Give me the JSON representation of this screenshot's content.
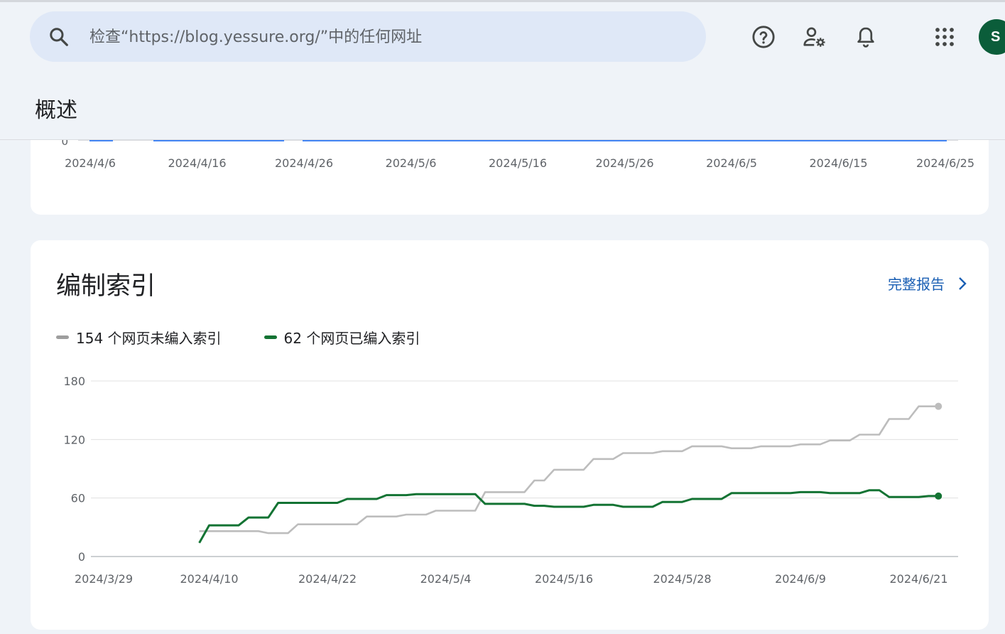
{
  "search": {
    "placeholder": "检查“https://blog.yessure.org/”中的任何网址"
  },
  "header": {
    "avatar_letter": "S"
  },
  "page": {
    "title": "概述"
  },
  "top_chart": {
    "zero_label": "0",
    "x_ticks": [
      "2024/4/6",
      "2024/4/16",
      "2024/4/26",
      "2024/5/6",
      "2024/5/16",
      "2024/5/26",
      "2024/6/5",
      "2024/6/15",
      "2024/6/25"
    ]
  },
  "indexing": {
    "title": "编制索引",
    "full_report_label": "完整报告",
    "legend": [
      {
        "label": "154 个网页未编入索引",
        "color": "#9e9e9e"
      },
      {
        "label": "62 个网页已编入索引",
        "color": "#137333"
      }
    ]
  },
  "chart_data": {
    "type": "line",
    "y_ticks": [
      "180",
      "120",
      "60",
      "0"
    ],
    "ylim": [
      0,
      180
    ],
    "x_ticks": [
      "2024/3/29",
      "2024/4/10",
      "2024/4/22",
      "2024/5/4",
      "2024/5/16",
      "2024/5/28",
      "2024/6/9",
      "2024/6/21"
    ],
    "x_range": [
      "2024-03-29",
      "2024-06-25"
    ],
    "grid": true,
    "series": [
      {
        "name": "154 个网页未编入索引",
        "color": "#bdbdbd",
        "points": [
          [
            "2024-04-09",
            26
          ],
          [
            "2024-04-15",
            26
          ],
          [
            "2024-04-16",
            24
          ],
          [
            "2024-04-18",
            24
          ],
          [
            "2024-04-19",
            33
          ],
          [
            "2024-04-25",
            33
          ],
          [
            "2024-04-26",
            41
          ],
          [
            "2024-04-29",
            41
          ],
          [
            "2024-04-30",
            43
          ],
          [
            "2024-05-02",
            43
          ],
          [
            "2024-05-03",
            47
          ],
          [
            "2024-05-07",
            47
          ],
          [
            "2024-05-08",
            66
          ],
          [
            "2024-05-12",
            66
          ],
          [
            "2024-05-13",
            78
          ],
          [
            "2024-05-14",
            78
          ],
          [
            "2024-05-15",
            89
          ],
          [
            "2024-05-18",
            89
          ],
          [
            "2024-05-19",
            100
          ],
          [
            "2024-05-21",
            100
          ],
          [
            "2024-05-22",
            106
          ],
          [
            "2024-05-25",
            106
          ],
          [
            "2024-05-26",
            108
          ],
          [
            "2024-05-28",
            108
          ],
          [
            "2024-05-29",
            113
          ],
          [
            "2024-06-01",
            113
          ],
          [
            "2024-06-02",
            111
          ],
          [
            "2024-06-04",
            111
          ],
          [
            "2024-06-05",
            113
          ],
          [
            "2024-06-08",
            113
          ],
          [
            "2024-06-09",
            115
          ],
          [
            "2024-06-11",
            115
          ],
          [
            "2024-06-12",
            119
          ],
          [
            "2024-06-14",
            119
          ],
          [
            "2024-06-15",
            125
          ],
          [
            "2024-06-17",
            125
          ],
          [
            "2024-06-18",
            141
          ],
          [
            "2024-06-20",
            141
          ],
          [
            "2024-06-21",
            154
          ],
          [
            "2024-06-23",
            154
          ]
        ]
      },
      {
        "name": "62 个网页已编入索引",
        "color": "#137333",
        "points": [
          [
            "2024-04-09",
            14
          ],
          [
            "2024-04-10",
            32
          ],
          [
            "2024-04-13",
            32
          ],
          [
            "2024-04-14",
            40
          ],
          [
            "2024-04-16",
            40
          ],
          [
            "2024-04-17",
            55
          ],
          [
            "2024-04-23",
            55
          ],
          [
            "2024-04-24",
            59
          ],
          [
            "2024-04-27",
            59
          ],
          [
            "2024-04-28",
            63
          ],
          [
            "2024-04-30",
            63
          ],
          [
            "2024-05-01",
            64
          ],
          [
            "2024-05-07",
            64
          ],
          [
            "2024-05-08",
            54
          ],
          [
            "2024-05-12",
            54
          ],
          [
            "2024-05-13",
            52
          ],
          [
            "2024-05-14",
            52
          ],
          [
            "2024-05-15",
            51
          ],
          [
            "2024-05-18",
            51
          ],
          [
            "2024-05-19",
            53
          ],
          [
            "2024-05-21",
            53
          ],
          [
            "2024-05-22",
            51
          ],
          [
            "2024-05-25",
            51
          ],
          [
            "2024-05-26",
            56
          ],
          [
            "2024-05-28",
            56
          ],
          [
            "2024-05-29",
            59
          ],
          [
            "2024-06-01",
            59
          ],
          [
            "2024-06-02",
            65
          ],
          [
            "2024-06-08",
            65
          ],
          [
            "2024-06-09",
            66
          ],
          [
            "2024-06-11",
            66
          ],
          [
            "2024-06-12",
            65
          ],
          [
            "2024-06-15",
            65
          ],
          [
            "2024-06-16",
            68
          ],
          [
            "2024-06-17",
            68
          ],
          [
            "2024-06-18",
            61
          ],
          [
            "2024-06-21",
            61
          ],
          [
            "2024-06-22",
            62
          ],
          [
            "2024-06-23",
            62
          ]
        ]
      }
    ]
  }
}
